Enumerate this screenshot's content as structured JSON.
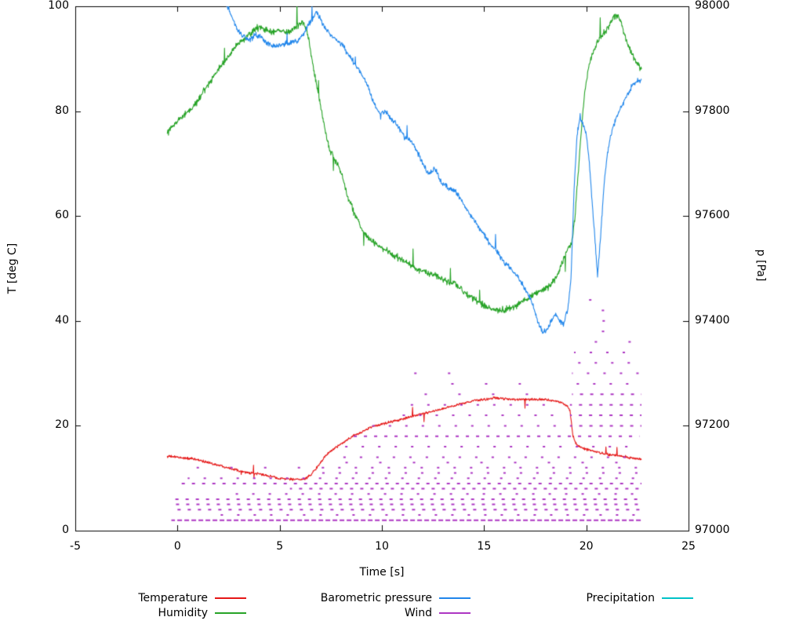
{
  "chart_data": {
    "type": "line",
    "title": "",
    "xlabel": "Time [s]",
    "ylabel_left": "T [deg C]",
    "ylabel_right": "p [Pa]",
    "xlim": [
      -5,
      25
    ],
    "ylim_left": [
      0,
      100
    ],
    "ylim_right": [
      97000,
      98000
    ],
    "xticks": [
      -5,
      0,
      5,
      10,
      15,
      20,
      25
    ],
    "yticks_left": [
      0,
      20,
      40,
      60,
      80,
      100
    ],
    "yticks_right": [
      97000,
      97200,
      97400,
      97600,
      97800,
      98000
    ],
    "grid": false,
    "legend_position": "below",
    "axis_color": "#000000",
    "series": [
      {
        "name": "Temperature",
        "color": "#e51717",
        "axis": "left",
        "style": "noisy-line",
        "noise": 0.35,
        "points": [
          [
            -0.5,
            14.2
          ],
          [
            0,
            14
          ],
          [
            0.5,
            13.8
          ],
          [
            1,
            13.5
          ],
          [
            1.5,
            13
          ],
          [
            2,
            12.5
          ],
          [
            2.5,
            12
          ],
          [
            3,
            11.5
          ],
          [
            3.5,
            11
          ],
          [
            4,
            10.8
          ],
          [
            4.5,
            10.4
          ],
          [
            5,
            10
          ],
          [
            5.5,
            9.8
          ],
          [
            6,
            9.7
          ],
          [
            6.3,
            10
          ],
          [
            6.6,
            11
          ],
          [
            7,
            13
          ],
          [
            7.3,
            14.5
          ],
          [
            7.6,
            15.5
          ],
          [
            8,
            16.5
          ],
          [
            8.5,
            17.8
          ],
          [
            9,
            18.8
          ],
          [
            9.5,
            19.8
          ],
          [
            10,
            20.3
          ],
          [
            10.5,
            20.8
          ],
          [
            11,
            21.3
          ],
          [
            11.5,
            21.8
          ],
          [
            12,
            22.3
          ],
          [
            12.5,
            22.8
          ],
          [
            13,
            23.3
          ],
          [
            13.5,
            23.8
          ],
          [
            14,
            24.3
          ],
          [
            14.5,
            24.8
          ],
          [
            15,
            25
          ],
          [
            15.5,
            25.3
          ],
          [
            16,
            25.2
          ],
          [
            16.5,
            25
          ],
          [
            17,
            25.1
          ],
          [
            17.5,
            25
          ],
          [
            18,
            25
          ],
          [
            18.5,
            24.8
          ],
          [
            19,
            24
          ],
          [
            19.2,
            23
          ],
          [
            19.35,
            18
          ],
          [
            19.5,
            16.5
          ],
          [
            19.8,
            15.8
          ],
          [
            20,
            15.5
          ],
          [
            20.5,
            15
          ],
          [
            21,
            14.6
          ],
          [
            21.5,
            14.3
          ],
          [
            22,
            14
          ],
          [
            22.4,
            13.8
          ],
          [
            22.7,
            13.5
          ]
        ]
      },
      {
        "name": "Humidity",
        "color": "#27a327",
        "axis": "left",
        "style": "noisy-line",
        "noise": 0.9,
        "points": [
          [
            -0.5,
            76
          ],
          [
            0,
            78
          ],
          [
            0.3,
            79
          ],
          [
            0.6,
            80
          ],
          [
            1,
            82
          ],
          [
            1.3,
            84
          ],
          [
            1.6,
            85.5
          ],
          [
            2,
            88
          ],
          [
            2.3,
            89.5
          ],
          [
            2.6,
            91
          ],
          [
            3,
            93
          ],
          [
            3.3,
            94
          ],
          [
            3.6,
            95
          ],
          [
            4,
            96
          ],
          [
            4.3,
            95.5
          ],
          [
            4.6,
            95
          ],
          [
            5,
            95.5
          ],
          [
            5.3,
            95
          ],
          [
            5.6,
            95.5
          ],
          [
            5.9,
            96.5
          ],
          [
            6.1,
            97
          ],
          [
            6.3,
            96
          ],
          [
            6.5,
            92
          ],
          [
            6.7,
            87
          ],
          [
            6.9,
            83
          ],
          [
            7.1,
            79
          ],
          [
            7.3,
            75
          ],
          [
            7.5,
            72
          ],
          [
            7.7,
            70.5
          ],
          [
            7.9,
            69.5
          ],
          [
            8.1,
            67
          ],
          [
            8.3,
            64
          ],
          [
            8.5,
            62
          ],
          [
            8.7,
            60
          ],
          [
            9,
            57.5
          ],
          [
            9.3,
            56
          ],
          [
            9.6,
            55
          ],
          [
            10,
            54
          ],
          [
            10.4,
            53
          ],
          [
            10.8,
            52
          ],
          [
            11.2,
            51
          ],
          [
            11.6,
            50
          ],
          [
            12,
            49.5
          ],
          [
            12.4,
            49
          ],
          [
            12.8,
            48.5
          ],
          [
            13.2,
            47.5
          ],
          [
            13.6,
            47
          ],
          [
            14,
            45.5
          ],
          [
            14.4,
            44.5
          ],
          [
            14.8,
            43.5
          ],
          [
            15.2,
            42.5
          ],
          [
            15.6,
            42
          ],
          [
            16,
            42
          ],
          [
            16.4,
            42.5
          ],
          [
            16.8,
            43.5
          ],
          [
            17.2,
            44.5
          ],
          [
            17.6,
            45.5
          ],
          [
            18,
            46
          ],
          [
            18.3,
            47
          ],
          [
            18.6,
            49
          ],
          [
            18.9,
            52
          ],
          [
            19.1,
            54
          ],
          [
            19.3,
            55
          ],
          [
            19.45,
            60
          ],
          [
            19.6,
            68
          ],
          [
            19.75,
            76
          ],
          [
            19.9,
            83
          ],
          [
            20.1,
            88
          ],
          [
            20.3,
            91
          ],
          [
            20.6,
            93.5
          ],
          [
            20.9,
            95
          ],
          [
            21.2,
            97
          ],
          [
            21.5,
            98.5
          ],
          [
            21.7,
            97
          ],
          [
            21.9,
            94
          ],
          [
            22.1,
            92
          ],
          [
            22.3,
            90.5
          ],
          [
            22.5,
            89
          ],
          [
            22.7,
            88
          ]
        ]
      },
      {
        "name": "Barometric pressure",
        "color": "#2186eb",
        "axis": "right",
        "style": "noisy-line",
        "noise": 7,
        "points": [
          [
            2.35,
            98000
          ],
          [
            2.5,
            97995
          ],
          [
            2.7,
            97975
          ],
          [
            3,
            97950
          ],
          [
            3.2,
            97945
          ],
          [
            3.5,
            97935
          ],
          [
            3.8,
            97945
          ],
          [
            4.1,
            97940
          ],
          [
            4.4,
            97930
          ],
          [
            4.7,
            97925
          ],
          [
            5,
            97925
          ],
          [
            5.3,
            97930
          ],
          [
            5.6,
            97930
          ],
          [
            5.9,
            97935
          ],
          [
            6.2,
            97950
          ],
          [
            6.5,
            97970
          ],
          [
            6.8,
            97990
          ],
          [
            7,
            97975
          ],
          [
            7.2,
            97960
          ],
          [
            7.5,
            97945
          ],
          [
            7.8,
            97935
          ],
          [
            8.1,
            97925
          ],
          [
            8.4,
            97905
          ],
          [
            8.7,
            97890
          ],
          [
            9,
            97870
          ],
          [
            9.3,
            97850
          ],
          [
            9.6,
            97815
          ],
          [
            9.9,
            97795
          ],
          [
            10.2,
            97800
          ],
          [
            10.5,
            97785
          ],
          [
            10.8,
            97770
          ],
          [
            11.1,
            97750
          ],
          [
            11.4,
            97745
          ],
          [
            11.7,
            97725
          ],
          [
            12,
            97700
          ],
          [
            12.3,
            97680
          ],
          [
            12.6,
            97690
          ],
          [
            12.9,
            97665
          ],
          [
            13.2,
            97655
          ],
          [
            13.5,
            97650
          ],
          [
            13.8,
            97635
          ],
          [
            14.1,
            97615
          ],
          [
            14.4,
            97600
          ],
          [
            14.7,
            97580
          ],
          [
            15,
            97565
          ],
          [
            15.3,
            97545
          ],
          [
            15.6,
            97535
          ],
          [
            15.9,
            97515
          ],
          [
            16.2,
            97505
          ],
          [
            16.5,
            97490
          ],
          [
            16.8,
            97475
          ],
          [
            17.1,
            97455
          ],
          [
            17.3,
            97440
          ],
          [
            17.5,
            97415
          ],
          [
            17.7,
            97390
          ],
          [
            17.9,
            97378
          ],
          [
            18.1,
            97385
          ],
          [
            18.3,
            97400
          ],
          [
            18.5,
            97415
          ],
          [
            18.7,
            97400
          ],
          [
            18.9,
            97395
          ],
          [
            19.1,
            97425
          ],
          [
            19.25,
            97480
          ],
          [
            19.4,
            97650
          ],
          [
            19.55,
            97755
          ],
          [
            19.7,
            97790
          ],
          [
            19.85,
            97775
          ],
          [
            20,
            97755
          ],
          [
            20.15,
            97700
          ],
          [
            20.3,
            97620
          ],
          [
            20.45,
            97540
          ],
          [
            20.55,
            97485
          ],
          [
            20.7,
            97560
          ],
          [
            20.85,
            97650
          ],
          [
            21,
            97710
          ],
          [
            21.2,
            97755
          ],
          [
            21.4,
            97780
          ],
          [
            21.6,
            97800
          ],
          [
            21.8,
            97815
          ],
          [
            22,
            97830
          ],
          [
            22.2,
            97845
          ],
          [
            22.4,
            97855
          ],
          [
            22.7,
            97860
          ]
        ]
      },
      {
        "name": "Wind",
        "color": "#ad36c3",
        "axis": "left",
        "style": "dashed-levels",
        "segments": [
          [
            2,
            -0.3,
            22.7,
            "dense"
          ],
          [
            3,
            1.5,
            22.7,
            "sparse"
          ],
          [
            4,
            -0.3,
            22.7,
            "med"
          ],
          [
            5,
            -0.3,
            22.7,
            "med"
          ],
          [
            6,
            -0.3,
            22.7,
            "med"
          ],
          [
            7,
            2.5,
            22.7,
            "sparse"
          ],
          [
            8,
            5.5,
            22.7,
            "med"
          ],
          [
            9,
            0.2,
            22.7,
            "med"
          ],
          [
            10,
            0.5,
            22.7,
            "sparse"
          ],
          [
            11,
            6.5,
            22.7,
            "sparse"
          ],
          [
            12,
            0.3,
            7,
            "vsparse"
          ],
          [
            12,
            7,
            22.7,
            "sparse"
          ],
          [
            13,
            7.5,
            22.5,
            "vsparse"
          ],
          [
            14,
            7.5,
            22.6,
            "sparse"
          ],
          [
            16,
            8,
            22.7,
            "sparse"
          ],
          [
            18,
            8.5,
            22.6,
            "med"
          ],
          [
            20,
            9.5,
            19.0,
            "sparse"
          ],
          [
            20,
            19.2,
            22.7,
            "med"
          ],
          [
            22,
            10.5,
            19.0,
            "sparse"
          ],
          [
            22,
            19.2,
            22.7,
            "med"
          ],
          [
            24,
            11,
            18.6,
            "sparse"
          ],
          [
            24,
            19.2,
            22.7,
            "med"
          ],
          [
            26,
            11.5,
            17.8,
            "vsparse"
          ],
          [
            26,
            19.3,
            22.7,
            "med"
          ],
          [
            28,
            12,
            16.8,
            "vsparse"
          ],
          [
            28,
            19.3,
            22.7,
            "sparse"
          ],
          [
            30,
            10.2,
            14.5,
            "vsparse"
          ],
          [
            30,
            19.3,
            22.6,
            "sparse"
          ],
          [
            32,
            19.3,
            22.6,
            "sparse"
          ],
          [
            34,
            19.4,
            22.5,
            "sparse"
          ],
          [
            36,
            19.4,
            22.4,
            "vsparse"
          ],
          [
            38,
            19.4,
            22.3,
            "vsparse"
          ],
          [
            40,
            19.5,
            22.2,
            "vsparse"
          ],
          [
            42,
            19.5,
            21.9,
            "vsparse"
          ],
          [
            44,
            19.6,
            21.6,
            "vsparse"
          ]
        ]
      },
      {
        "name": "Precipitation",
        "color": "#00c2c7",
        "axis": "left",
        "style": "noisy-line",
        "noise": 0,
        "points": []
      }
    ]
  }
}
